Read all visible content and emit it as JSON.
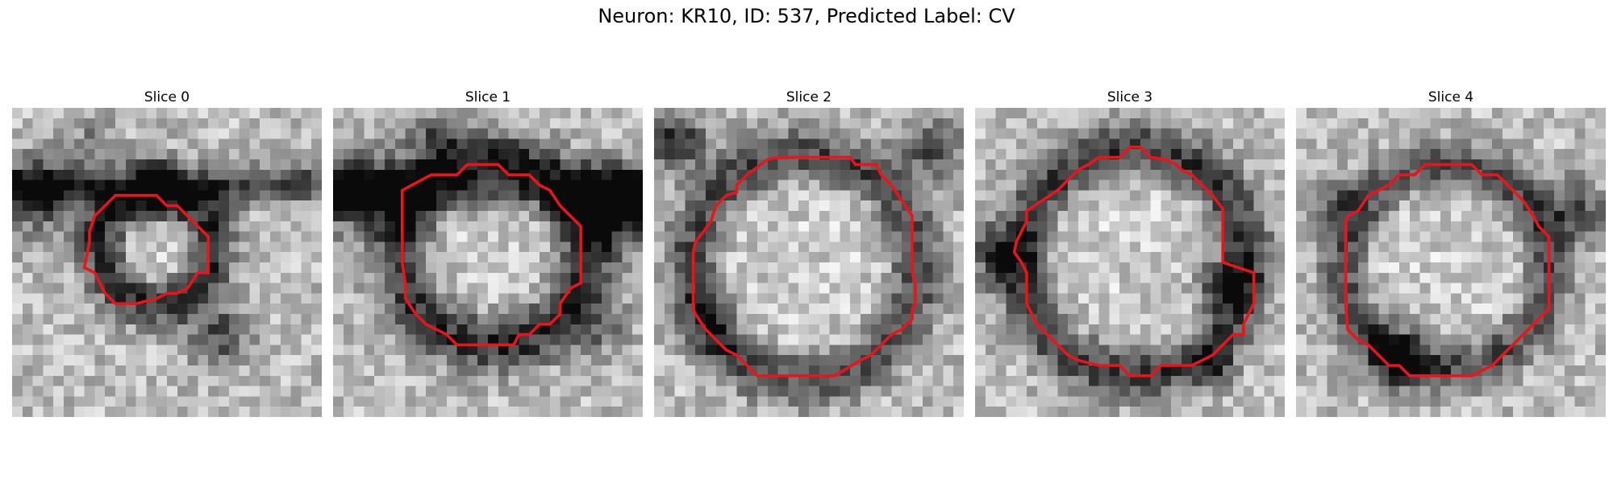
{
  "title": "Neuron: KR10, ID: 537, Predicted Label: CV",
  "colors": {
    "contour": "#e8151b",
    "dark": "#0b0b0b",
    "light": "#f3f3f3"
  },
  "slices": [
    {
      "title": "Slice 0",
      "contour_radius_fraction": 0.25
    },
    {
      "title": "Slice 1",
      "contour_radius_fraction": 0.31
    },
    {
      "title": "Slice 2",
      "contour_radius_fraction": 0.36
    },
    {
      "title": "Slice 3",
      "contour_radius_fraction": 0.37
    },
    {
      "title": "Slice 4",
      "contour_radius_fraction": 0.34
    }
  ]
}
